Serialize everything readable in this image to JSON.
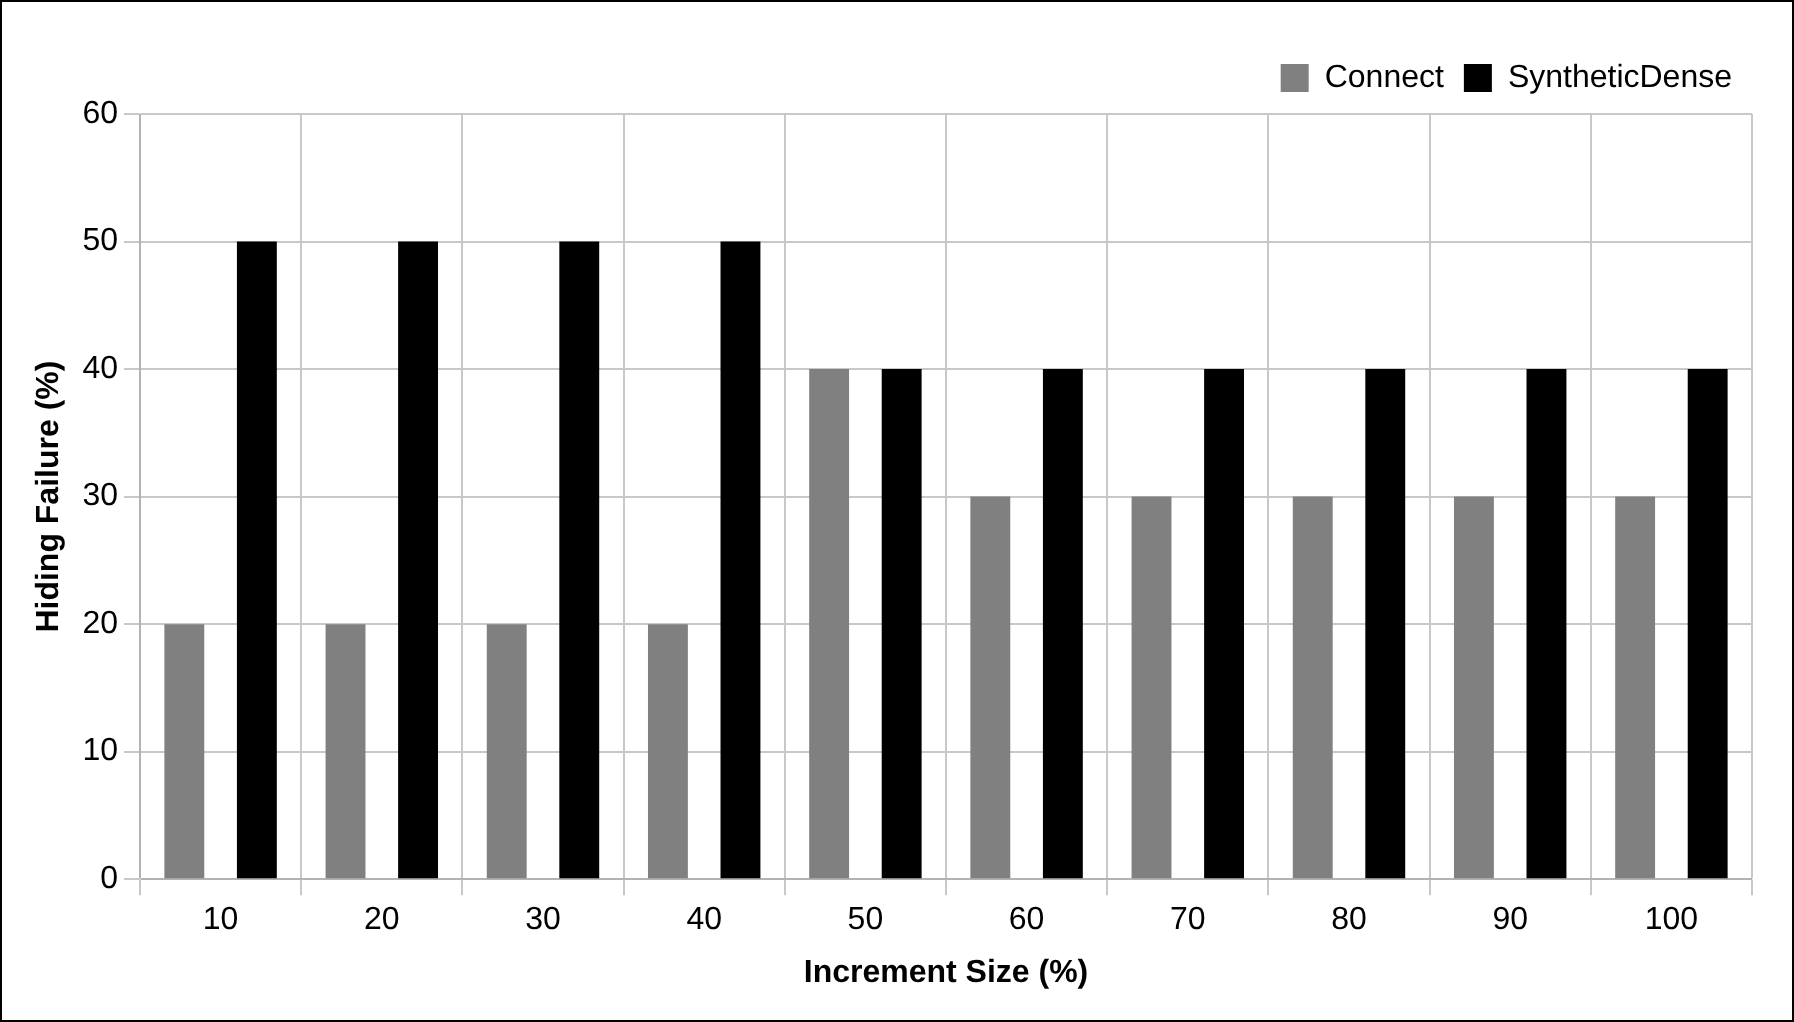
{
  "chart_data": {
    "type": "bar",
    "xlabel": "Increment Size (%)",
    "ylabel": "Hiding Failure (%)",
    "categories": [
      "10",
      "20",
      "30",
      "40",
      "50",
      "60",
      "70",
      "80",
      "90",
      "100"
    ],
    "series": [
      {
        "name": "Connect",
        "color": "#808080",
        "values": [
          20,
          20,
          20,
          20,
          40,
          30,
          30,
          30,
          30,
          30
        ]
      },
      {
        "name": "SyntheticDense",
        "color": "#000000",
        "values": [
          50,
          50,
          50,
          50,
          40,
          40,
          40,
          40,
          40,
          40
        ]
      }
    ],
    "ylim": [
      0,
      60
    ],
    "yticks": [
      0,
      10,
      20,
      30,
      40,
      50,
      60
    ],
    "grid": true,
    "legend": "top right"
  }
}
